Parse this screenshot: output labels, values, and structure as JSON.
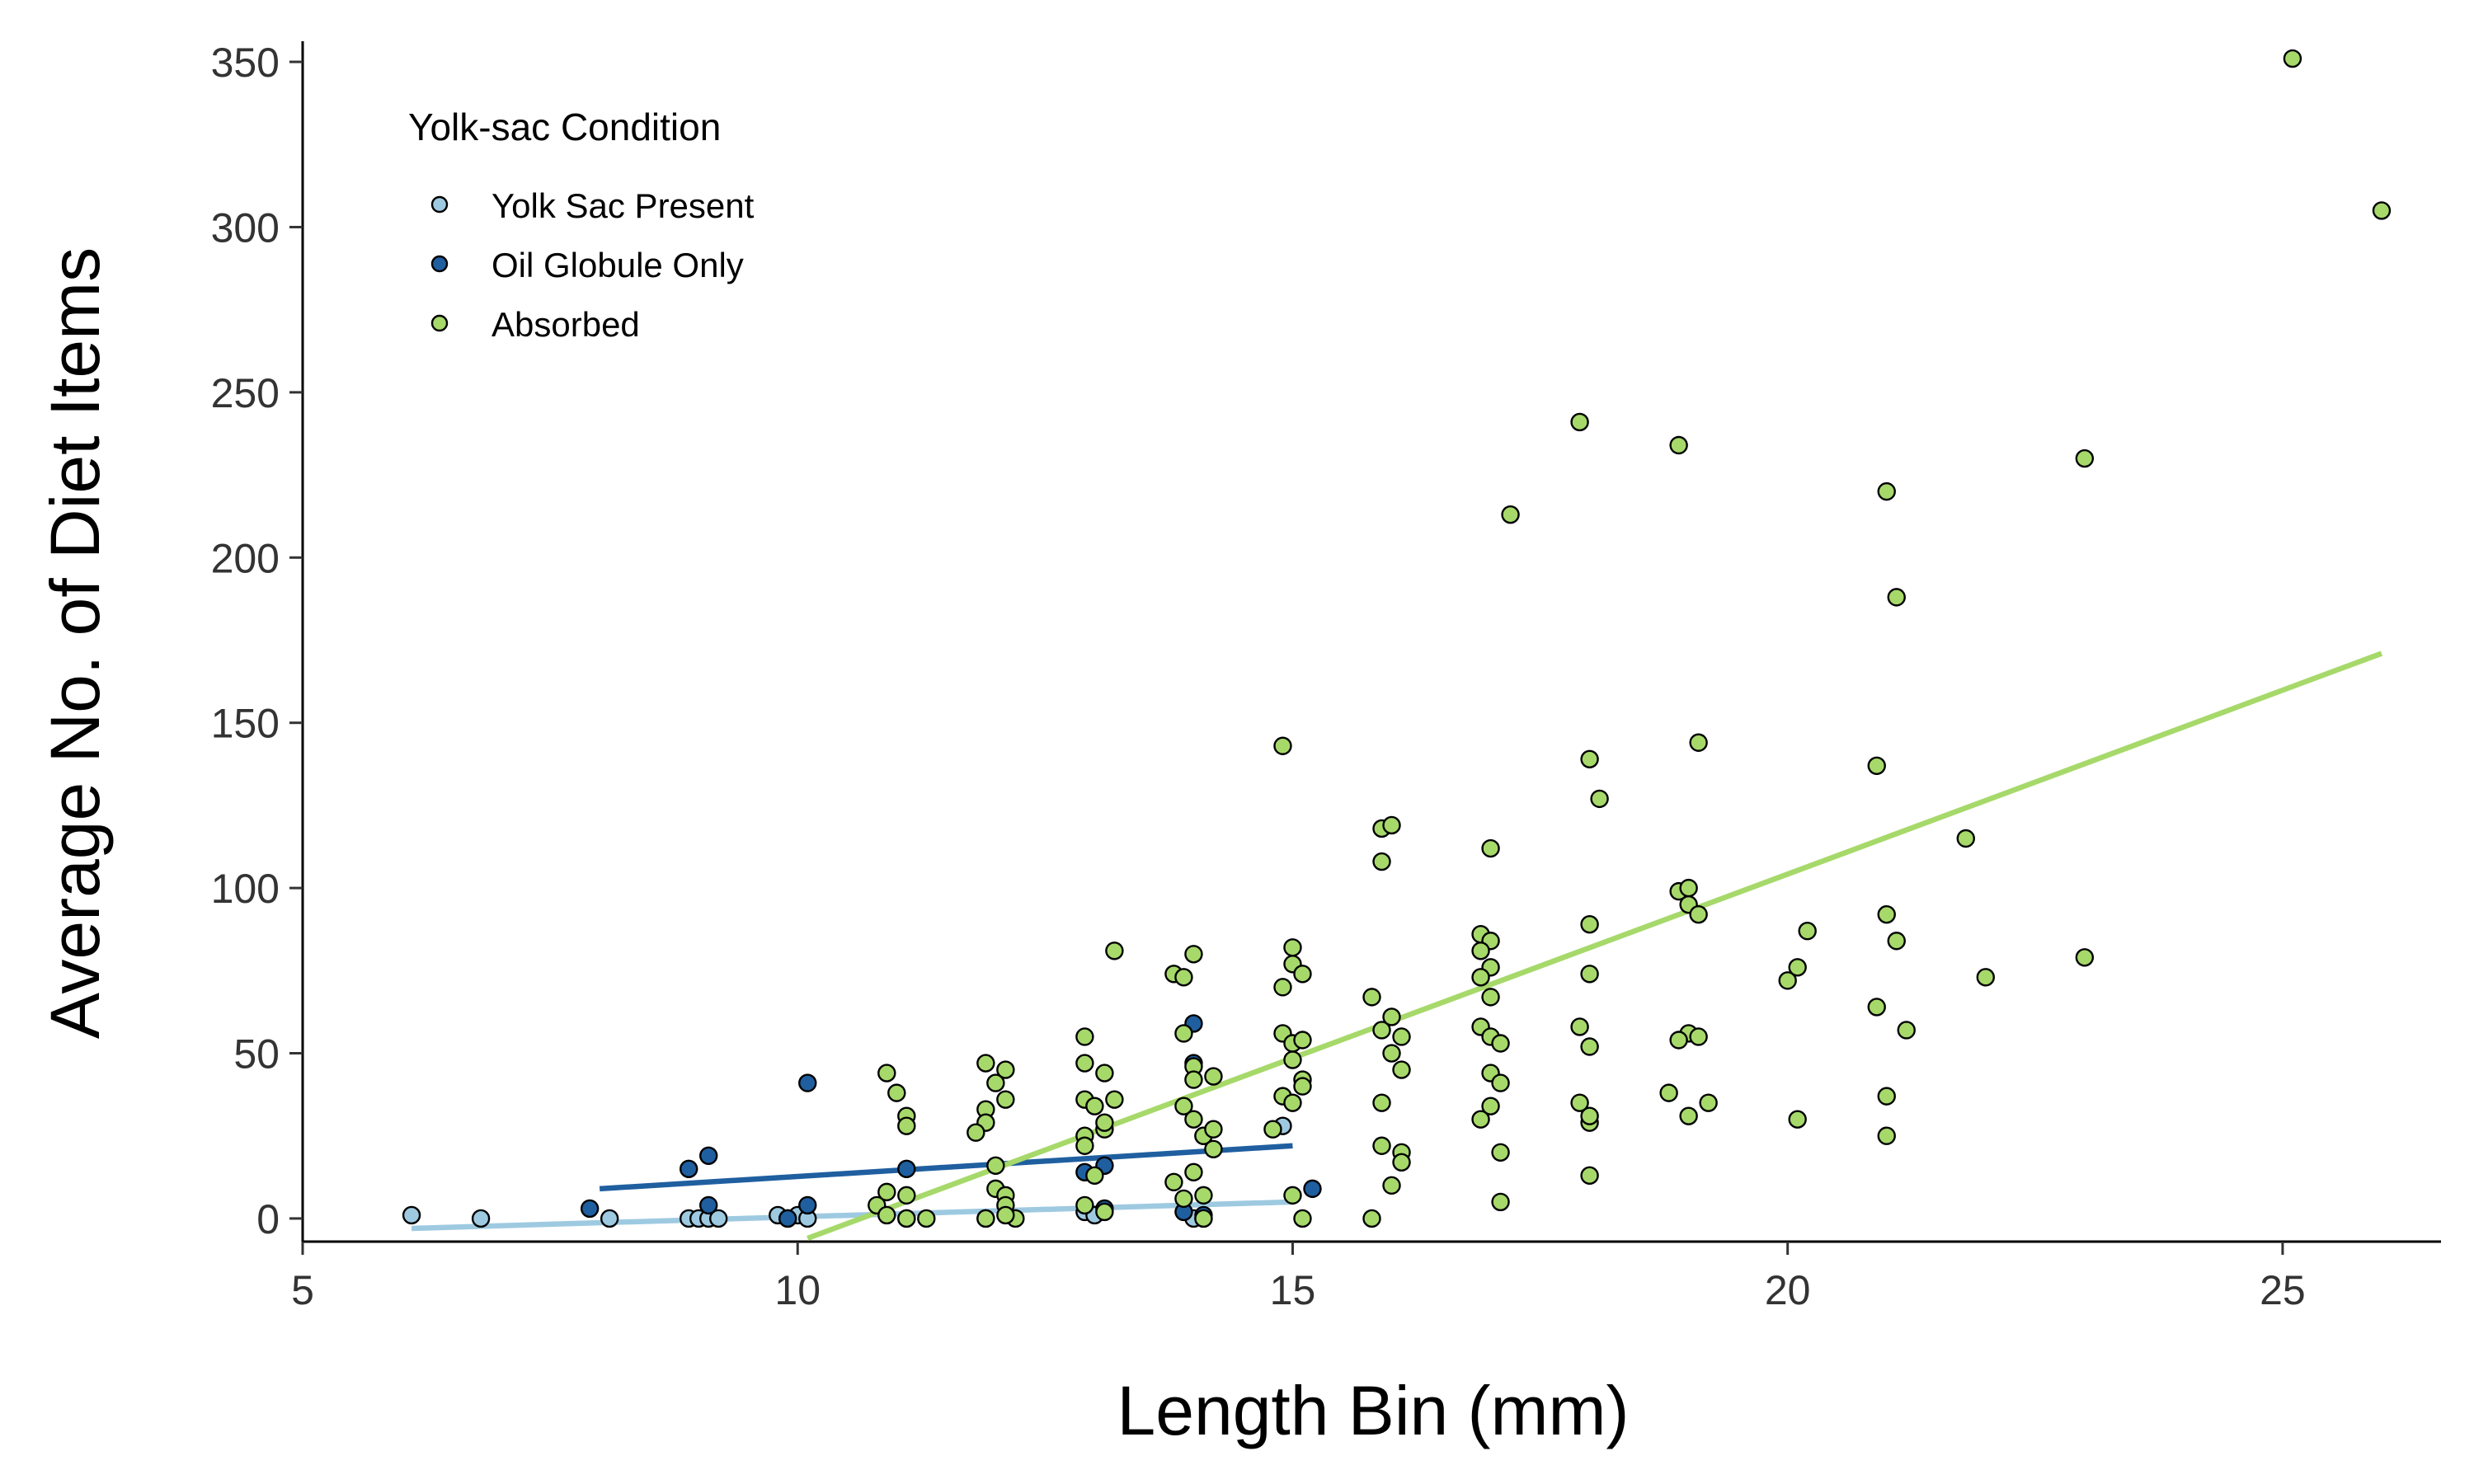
{
  "chart_data": {
    "type": "scatter",
    "title": "",
    "xlabel": "Length Bin (mm)",
    "ylabel": "Average No. of Diet Items",
    "xlim": [
      5,
      26.6
    ],
    "ylim": [
      -7,
      355
    ],
    "xticks": [
      5,
      10,
      15,
      20,
      25
    ],
    "yticks": [
      0,
      50,
      100,
      150,
      200,
      250,
      300,
      350
    ],
    "grid": false,
    "legend": {
      "title": "Yolk-sac Condition",
      "placement": "top-left",
      "entries": [
        "Yolk Sac Present",
        "Oil Globule Only",
        "Absorbed"
      ]
    },
    "series": [
      {
        "name": "Yolk Sac Present",
        "color": "#9ecae1",
        "points": [
          [
            6.1,
            1
          ],
          [
            6.8,
            0
          ],
          [
            8.1,
            0
          ],
          [
            8.9,
            0
          ],
          [
            9.0,
            0
          ],
          [
            9.1,
            0
          ],
          [
            9.2,
            0
          ],
          [
            9.8,
            1
          ],
          [
            9.9,
            0
          ],
          [
            10.0,
            1
          ],
          [
            10.1,
            0
          ],
          [
            11.1,
            0
          ],
          [
            11.9,
            0
          ],
          [
            12.9,
            2
          ],
          [
            13.0,
            1
          ],
          [
            14.0,
            0
          ],
          [
            14.1,
            0
          ],
          [
            14.9,
            28
          ]
        ],
        "trend": {
          "x": [
            6.1,
            15.0
          ],
          "y": [
            -3,
            5
          ]
        }
      },
      {
        "name": "Oil Globule Only",
        "color": "#1f5fa0",
        "points": [
          [
            7.9,
            3
          ],
          [
            8.9,
            15
          ],
          [
            9.1,
            19
          ],
          [
            9.1,
            4
          ],
          [
            9.9,
            0
          ],
          [
            10.1,
            41
          ],
          [
            10.1,
            4
          ],
          [
            11.1,
            15
          ],
          [
            12.9,
            14
          ],
          [
            13.1,
            3
          ],
          [
            13.1,
            16
          ],
          [
            13.9,
            2
          ],
          [
            14.0,
            59
          ],
          [
            14.0,
            47
          ],
          [
            14.1,
            25
          ],
          [
            14.1,
            1
          ],
          [
            15.2,
            9
          ]
        ],
        "trend": {
          "x": [
            8.0,
            15.0
          ],
          "y": [
            9,
            22
          ]
        }
      },
      {
        "name": "Absorbed",
        "color": "#a6d96a",
        "points": [
          [
            10.9,
            44
          ],
          [
            11.0,
            38
          ],
          [
            11.1,
            31
          ],
          [
            11.1,
            28
          ],
          [
            10.9,
            8
          ],
          [
            10.8,
            4
          ],
          [
            11.1,
            7
          ],
          [
            11.1,
            0
          ],
          [
            11.3,
            0
          ],
          [
            10.9,
            1
          ],
          [
            11.9,
            47
          ],
          [
            12.0,
            41
          ],
          [
            12.1,
            45
          ],
          [
            11.9,
            33
          ],
          [
            12.1,
            36
          ],
          [
            11.9,
            29
          ],
          [
            11.8,
            26
          ],
          [
            12.0,
            16
          ],
          [
            12.0,
            9
          ],
          [
            12.1,
            7
          ],
          [
            12.1,
            4
          ],
          [
            11.9,
            0
          ],
          [
            12.2,
            0
          ],
          [
            12.1,
            1
          ],
          [
            12.9,
            55
          ],
          [
            12.9,
            47
          ],
          [
            13.1,
            44
          ],
          [
            12.9,
            36
          ],
          [
            13.0,
            34
          ],
          [
            13.2,
            36
          ],
          [
            12.9,
            25
          ],
          [
            13.1,
            27
          ],
          [
            13.1,
            29
          ],
          [
            12.9,
            22
          ],
          [
            13.0,
            13
          ],
          [
            12.9,
            4
          ],
          [
            13.1,
            2
          ],
          [
            13.2,
            81
          ],
          [
            13.8,
            74
          ],
          [
            13.9,
            73
          ],
          [
            13.9,
            56
          ],
          [
            14.0,
            46
          ],
          [
            14.0,
            42
          ],
          [
            14.2,
            43
          ],
          [
            13.9,
            34
          ],
          [
            14.0,
            30
          ],
          [
            14.1,
            25
          ],
          [
            14.2,
            27
          ],
          [
            14.2,
            21
          ],
          [
            14.0,
            14
          ],
          [
            13.8,
            11
          ],
          [
            13.9,
            6
          ],
          [
            14.1,
            7
          ],
          [
            14.1,
            0
          ],
          [
            14.0,
            80
          ],
          [
            14.9,
            70
          ],
          [
            15.0,
            77
          ],
          [
            15.0,
            82
          ],
          [
            15.1,
            74
          ],
          [
            14.9,
            56
          ],
          [
            15.0,
            53
          ],
          [
            15.1,
            54
          ],
          [
            15.0,
            48
          ],
          [
            15.1,
            42
          ],
          [
            14.9,
            37
          ],
          [
            15.0,
            35
          ],
          [
            15.1,
            40
          ],
          [
            14.8,
            27
          ],
          [
            15.0,
            7
          ],
          [
            15.1,
            0
          ],
          [
            14.9,
            143
          ],
          [
            15.9,
            118
          ],
          [
            16.0,
            119
          ],
          [
            15.9,
            108
          ],
          [
            15.8,
            67
          ],
          [
            16.0,
            61
          ],
          [
            15.9,
            57
          ],
          [
            16.1,
            55
          ],
          [
            16.0,
            50
          ],
          [
            16.1,
            45
          ],
          [
            15.9,
            35
          ],
          [
            15.9,
            22
          ],
          [
            16.1,
            20
          ],
          [
            16.1,
            17
          ],
          [
            16.0,
            10
          ],
          [
            15.8,
            0
          ],
          [
            16.9,
            86
          ],
          [
            17.0,
            84
          ],
          [
            16.9,
            81
          ],
          [
            17.0,
            76
          ],
          [
            16.9,
            73
          ],
          [
            17.0,
            67
          ],
          [
            16.9,
            58
          ],
          [
            17.0,
            55
          ],
          [
            17.1,
            53
          ],
          [
            17.0,
            44
          ],
          [
            17.1,
            41
          ],
          [
            17.0,
            34
          ],
          [
            16.9,
            30
          ],
          [
            17.1,
            20
          ],
          [
            17.1,
            5
          ],
          [
            17.0,
            112
          ],
          [
            17.2,
            213
          ],
          [
            17.9,
            241
          ],
          [
            18.0,
            139
          ],
          [
            18.1,
            127
          ],
          [
            18.0,
            89
          ],
          [
            18.0,
            74
          ],
          [
            17.9,
            58
          ],
          [
            18.0,
            52
          ],
          [
            17.9,
            35
          ],
          [
            18.0,
            29
          ],
          [
            18.0,
            13
          ],
          [
            18.0,
            31
          ],
          [
            18.9,
            234
          ],
          [
            19.1,
            144
          ],
          [
            18.9,
            99
          ],
          [
            19.0,
            100
          ],
          [
            19.0,
            95
          ],
          [
            19.1,
            92
          ],
          [
            19.0,
            56
          ],
          [
            19.1,
            55
          ],
          [
            18.9,
            54
          ],
          [
            18.8,
            38
          ],
          [
            19.0,
            31
          ],
          [
            19.2,
            35
          ],
          [
            20.0,
            72
          ],
          [
            20.1,
            76
          ],
          [
            20.2,
            87
          ],
          [
            20.1,
            30
          ],
          [
            21.0,
            220
          ],
          [
            21.1,
            188
          ],
          [
            20.9,
            137
          ],
          [
            21.0,
            92
          ],
          [
            21.1,
            84
          ],
          [
            20.9,
            64
          ],
          [
            21.2,
            57
          ],
          [
            21.0,
            37
          ],
          [
            21.0,
            25
          ],
          [
            21.8,
            115
          ],
          [
            22.0,
            73
          ],
          [
            23.0,
            230
          ],
          [
            23.0,
            79
          ],
          [
            25.1,
            351
          ],
          [
            26.0,
            305
          ]
        ],
        "trend": {
          "x": [
            10.1,
            26.0
          ],
          "y": [
            -6,
            171
          ]
        }
      }
    ]
  }
}
